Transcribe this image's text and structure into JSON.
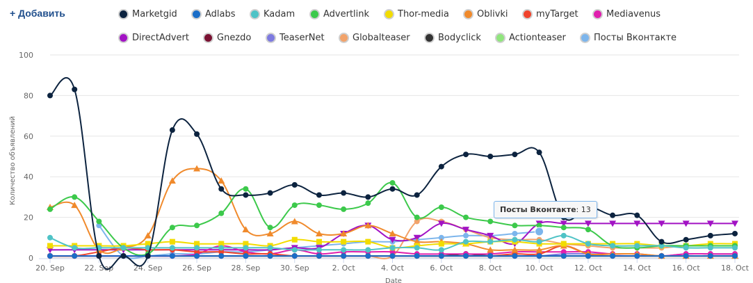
{
  "toolbar": {
    "add_label": "+ Добавить"
  },
  "tooltip": {
    "series": "Посты Вконтакте",
    "value": "13"
  },
  "chart_data": {
    "type": "line",
    "xlabel": "Date",
    "ylabel": "Количество объявлений",
    "ylim": [
      0,
      100
    ],
    "yticks": [
      0,
      20,
      40,
      60,
      80,
      100
    ],
    "grid": true,
    "legend_position": "top",
    "categories": [
      "20. Sep",
      "21. Sep",
      "22. Sep",
      "23. Sep",
      "24. Sep",
      "25. Sep",
      "26. Sep",
      "27. Sep",
      "28. Sep",
      "29. Sep",
      "30. Sep",
      "1. Oct",
      "2. Oct",
      "3. Oct",
      "4. Oct",
      "5. Oct",
      "6. Oct",
      "7. Oct",
      "8. Oct",
      "9. Oct",
      "10. Oct",
      "11. Oct",
      "12. Oct",
      "13. Oct",
      "14. Oct",
      "15. Oct",
      "16. Oct",
      "17. Oct",
      "18. Oct"
    ],
    "xtick_labels": [
      "20. Sep",
      "22. Sep",
      "24. Sep",
      "26. Sep",
      "28. Sep",
      "30. Sep",
      "2. Oct",
      "4. Oct",
      "6. Oct",
      "8. Oct",
      "10. Oct",
      "12. Oct",
      "14. Oct",
      "16. Oct",
      "18. Oct"
    ],
    "series": [
      {
        "name": "Marketgid",
        "color": "#0c233f",
        "marker": "circle",
        "values": [
          80,
          83,
          1,
          1,
          1,
          63,
          61,
          34,
          31,
          32,
          36,
          31,
          32,
          30,
          34,
          31,
          45,
          51,
          50,
          51,
          52,
          20,
          25,
          21,
          21,
          8,
          9,
          11,
          12
        ]
      },
      {
        "name": "Adlabs",
        "color": "#1a6dc7",
        "marker": "circle",
        "values": [
          1,
          1,
          1,
          1,
          1,
          1,
          1,
          1,
          1,
          1,
          1,
          1,
          1,
          1,
          1,
          1,
          1,
          1,
          1,
          1,
          1,
          1,
          1,
          1,
          1,
          1,
          1,
          1,
          1
        ]
      },
      {
        "name": "Kadam",
        "color": "#4fc3c6",
        "marker": "circle",
        "values": [
          10,
          5,
          5,
          5,
          5,
          5,
          5,
          5,
          5,
          5,
          4,
          4,
          4,
          4,
          5,
          5,
          4,
          8,
          8,
          9,
          8,
          11,
          7,
          6,
          6,
          6,
          5,
          5,
          5
        ]
      },
      {
        "name": "Advertlink",
        "color": "#3cc94b",
        "marker": "circle",
        "values": [
          24,
          30,
          18,
          5,
          2,
          15,
          16,
          22,
          34,
          15,
          26,
          26,
          24,
          27,
          37,
          20,
          25,
          20,
          18,
          16,
          16,
          15,
          14,
          6,
          5,
          6,
          6,
          6,
          6
        ]
      },
      {
        "name": "Thor-media",
        "color": "#f2dc00",
        "marker": "square",
        "values": [
          6,
          6,
          6,
          6,
          7,
          8,
          7,
          7,
          7,
          6,
          9,
          8,
          8,
          8,
          5,
          6,
          7,
          7,
          8,
          8,
          7,
          7,
          7,
          7,
          7,
          6,
          6,
          7,
          7
        ]
      },
      {
        "name": "Oblivki",
        "color": "#f08a2c",
        "marker": "triangle",
        "values": [
          25,
          26,
          4,
          5,
          11,
          38,
          44,
          38,
          14,
          12,
          18,
          12,
          12,
          16,
          12,
          8,
          8,
          7,
          4,
          4,
          4,
          6,
          2,
          2,
          2,
          1,
          1,
          1,
          1
        ]
      },
      {
        "name": "myTarget",
        "color": "#f0432c",
        "marker": "circle",
        "values": [
          1,
          1,
          3,
          5,
          4,
          4,
          3,
          3,
          2,
          2,
          1,
          1,
          1,
          1,
          1,
          1,
          1,
          1,
          1,
          2,
          2,
          6,
          2,
          1,
          1,
          1,
          1,
          1,
          1
        ]
      },
      {
        "name": "Mediavenus",
        "color": "#e01fae",
        "marker": "circle",
        "values": [
          1,
          1,
          1,
          1,
          1,
          1,
          2,
          6,
          3,
          2,
          4,
          2,
          3,
          3,
          3,
          2,
          2,
          2,
          2,
          3,
          3,
          3,
          3,
          2,
          2,
          1,
          2,
          2,
          2
        ]
      },
      {
        "name": "DirectAdvert",
        "color": "#a213c4",
        "marker": "triangle-down",
        "values": [
          4,
          4,
          4,
          4,
          4,
          4,
          4,
          4,
          4,
          4,
          5,
          5,
          12,
          16,
          9,
          10,
          17,
          14,
          11,
          7,
          17,
          17,
          17,
          17,
          17,
          17,
          17,
          17,
          17
        ]
      },
      {
        "name": "Gnezdo",
        "color": "#7a1132",
        "marker": "circle",
        "values": [
          1,
          1,
          1,
          1,
          1,
          1,
          1,
          1,
          1,
          1,
          1,
          1,
          1,
          1,
          1,
          1,
          1,
          1,
          1,
          1,
          1,
          1,
          1,
          1,
          1,
          1,
          1,
          1,
          1
        ]
      },
      {
        "name": "TeaserNet",
        "color": "#7d7ae0",
        "marker": "circle",
        "values": [
          1,
          1,
          1,
          1,
          1,
          1,
          1,
          1,
          1,
          1,
          1,
          1,
          1,
          1,
          1,
          1,
          1,
          1,
          1,
          1,
          1,
          2,
          2,
          2,
          2,
          1,
          2,
          2,
          2
        ]
      },
      {
        "name": "Globalteaser",
        "color": "#f2a36b",
        "marker": "circle",
        "values": [
          1,
          1,
          1,
          1,
          1,
          1,
          1,
          1,
          1,
          1,
          1,
          1,
          1,
          1,
          1,
          18,
          18,
          14,
          10,
          9,
          9,
          7,
          6,
          5,
          5,
          5,
          6,
          6,
          6
        ]
      },
      {
        "name": "Bodyclick",
        "color": "#333333",
        "marker": "circle",
        "values": [
          1,
          1,
          1,
          1,
          1,
          1,
          1,
          1,
          1,
          1,
          1,
          1,
          1,
          1,
          1,
          1,
          1,
          2,
          1,
          1,
          1,
          1,
          1,
          1,
          1,
          1,
          1,
          1,
          1
        ]
      },
      {
        "name": "Actionteaser",
        "color": "#90e57d",
        "marker": "circle",
        "values": [
          1,
          1,
          1,
          1,
          1,
          1,
          1,
          1,
          1,
          1,
          1,
          1,
          1,
          1,
          1,
          1,
          1,
          1,
          1,
          1,
          1,
          1,
          1,
          1,
          1,
          1,
          1,
          1,
          1
        ]
      },
      {
        "name": "Посты Вконтакте",
        "color": "#7cb5ec",
        "marker": "circle",
        "values": [
          null,
          null,
          16,
          1,
          1,
          2,
          2,
          3,
          3,
          4,
          5,
          6,
          7,
          8,
          8,
          9,
          10,
          11,
          11,
          12,
          13,
          null,
          null,
          null,
          null,
          null,
          null,
          null,
          null
        ]
      }
    ]
  }
}
